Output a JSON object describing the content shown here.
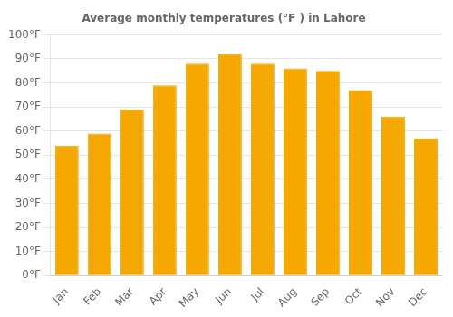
{
  "chart_data": {
    "type": "bar",
    "title": "Average monthly temperatures (°F ) in Lahore",
    "categories": [
      "Jan",
      "Feb",
      "Mar",
      "Apr",
      "May",
      "Jun",
      "Jul",
      "Aug",
      "Sep",
      "Oct",
      "Nov",
      "Dec"
    ],
    "values": [
      54,
      59,
      69,
      79,
      88,
      92,
      88,
      86,
      85,
      77,
      66,
      57
    ],
    "color": "#F5A800",
    "ylim": [
      0,
      100
    ],
    "yticks": [
      {
        "value": 0,
        "label": "0°F"
      },
      {
        "value": 10,
        "label": "10°F"
      },
      {
        "value": 20,
        "label": "20°F"
      },
      {
        "value": 30,
        "label": "30°F"
      },
      {
        "value": 40,
        "label": "40°F"
      },
      {
        "value": 50,
        "label": "50°F"
      },
      {
        "value": 60,
        "label": "60°F"
      },
      {
        "value": 70,
        "label": "70°F"
      },
      {
        "value": 80,
        "label": "80°F"
      },
      {
        "value": 90,
        "label": "90°F"
      },
      {
        "value": 100,
        "label": "100°F"
      }
    ],
    "grid": true
  }
}
